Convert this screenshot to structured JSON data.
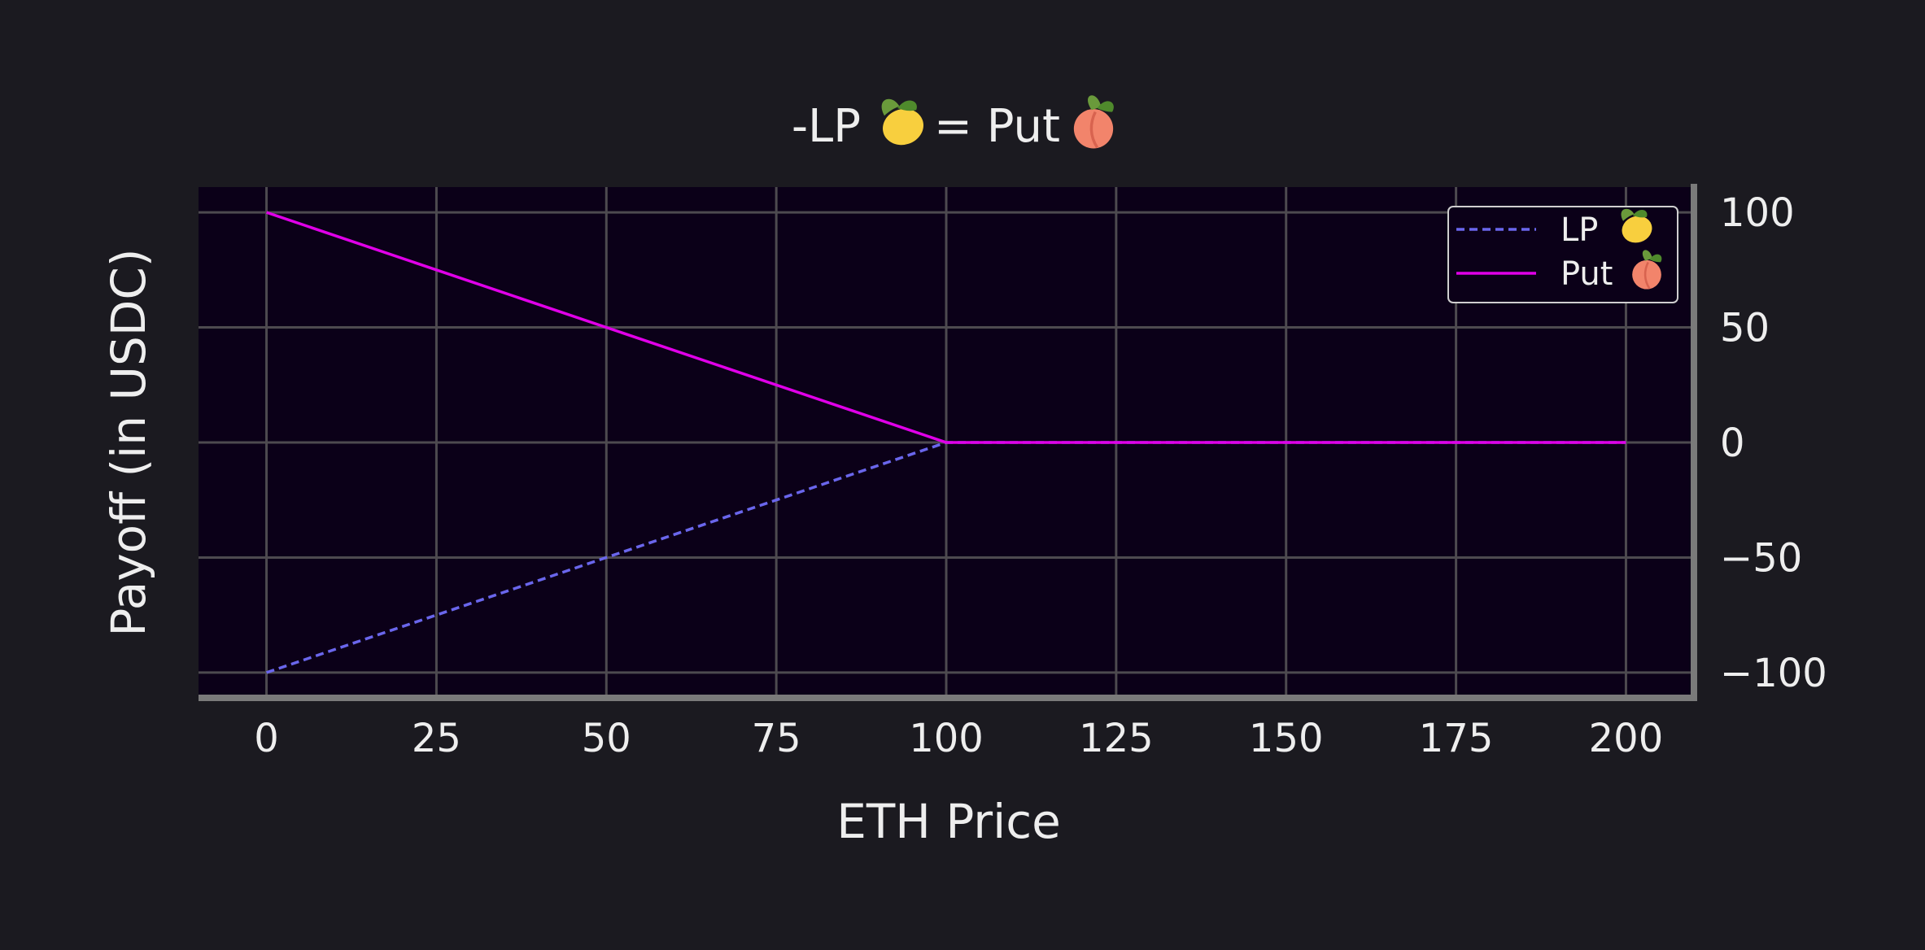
{
  "chart_data": {
    "type": "line",
    "title_parts": {
      "prefix": "-LP",
      "prefix_icon": "lemon-icon",
      "middle": "= Put",
      "suffix_icon": "peach-icon"
    },
    "xlabel": "ETH Price",
    "ylabel": "Payoff (in USDC)",
    "xlim": [
      -10,
      210
    ],
    "ylim": [
      -111,
      111
    ],
    "x_ticks": [
      0,
      25,
      50,
      75,
      100,
      125,
      150,
      175,
      200
    ],
    "x_tick_labels": [
      "0",
      "25",
      "50",
      "75",
      "100",
      "125",
      "150",
      "175",
      "200"
    ],
    "y_ticks": [
      100,
      50,
      0,
      -50,
      -100
    ],
    "y_tick_labels": [
      "100",
      "50",
      "0",
      "−50",
      "−100"
    ],
    "y_axis_side": "right",
    "grid": true,
    "legend_position": "top-right",
    "series": [
      {
        "name": "LP",
        "icon": "lemon-icon",
        "style": "dashed",
        "color": "#6a66ec",
        "x": [
          0,
          100,
          200
        ],
        "y": [
          -100,
          0,
          0
        ]
      },
      {
        "name": "Put",
        "icon": "peach-icon",
        "style": "solid",
        "color": "#e000e8",
        "x": [
          0,
          100,
          200
        ],
        "y": [
          100,
          0,
          0
        ]
      }
    ]
  },
  "colors": {
    "background": "#1b1a20",
    "plot_background": "#0b0018",
    "grid": "#4d4a4f",
    "spine": "#7a7a7a",
    "text": "#eeeeee",
    "lemon": "#f8cf3e",
    "peach": "#f2846b",
    "leaf": "#6a9a3b"
  }
}
